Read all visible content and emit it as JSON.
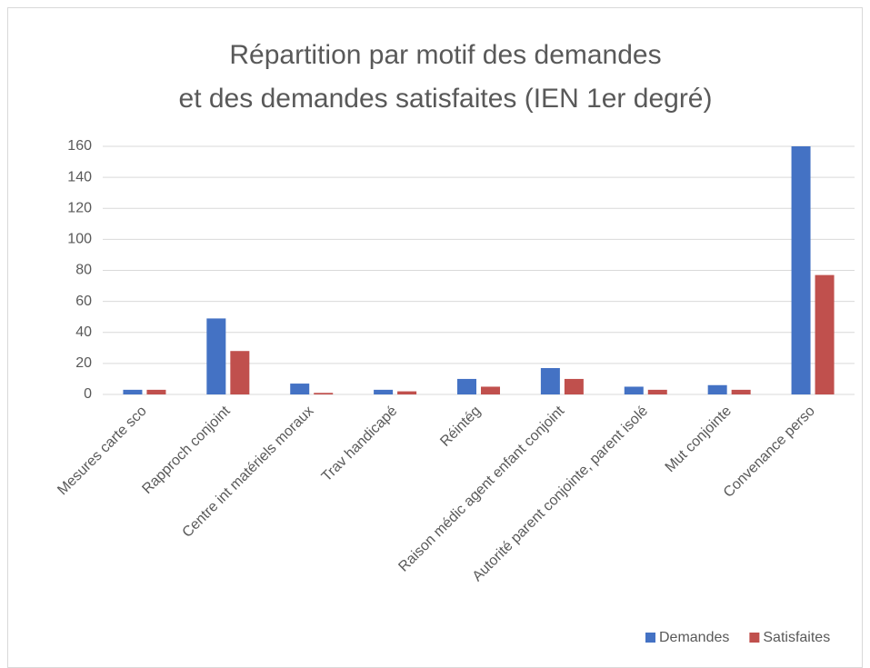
{
  "chart_data": {
    "type": "bar",
    "title": [
      "Répartition par motif des demandes",
      "et des demandes satisfaites (IEN 1er degré)"
    ],
    "categories": [
      "Mesures carte sco",
      "Rapproch conjoint",
      "Centre int matériels moraux",
      "Trav handicapé",
      "Réintég",
      "Raison médic agent enfant conjoint",
      "Autorité parent conjointe, parent isolé",
      "Mut conjointe",
      "Convenance perso"
    ],
    "series": [
      {
        "name": "Demandes",
        "color": "#4472c4",
        "values": [
          3,
          49,
          7,
          3,
          10,
          17,
          5,
          6,
          160
        ]
      },
      {
        "name": "Satisfaites",
        "color": "#c0504d",
        "values": [
          3,
          28,
          1,
          2,
          5,
          10,
          3,
          3,
          77
        ]
      }
    ],
    "ylim": [
      0,
      160
    ],
    "yticks": [
      0,
      20,
      40,
      60,
      80,
      100,
      120,
      140,
      160
    ],
    "grid": true,
    "legend": "bottom"
  }
}
